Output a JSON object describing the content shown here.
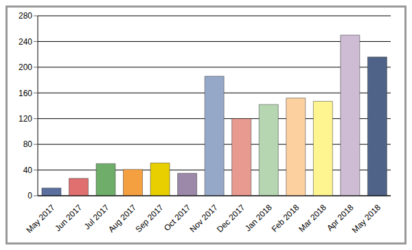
{
  "chart_data": {
    "type": "bar",
    "categories": [
      "May 2017",
      "Jun 2017",
      "Jul 2017",
      "Aug 2017",
      "Sep 2017",
      "Oct 2017",
      "Nov 2017",
      "Dec 2017",
      "Jan 2018",
      "Feb 2018",
      "Mar 2018",
      "Apr 2018",
      "May 2018"
    ],
    "values": [
      12,
      27,
      50,
      41,
      51,
      35,
      186,
      120,
      142,
      152,
      147,
      250,
      216
    ],
    "colors": [
      "#5a6f9e",
      "#e07070",
      "#6fae6a",
      "#f5a040",
      "#e8d000",
      "#9c88a8",
      "#96a8c8",
      "#e89a90",
      "#b5d6b0",
      "#fdd0a0",
      "#fff590",
      "#cdbcd4",
      "#4f6388"
    ],
    "ylim": [
      0,
      280
    ],
    "yticks": [
      0,
      40,
      80,
      120,
      160,
      200,
      240,
      280
    ],
    "grid": true
  }
}
